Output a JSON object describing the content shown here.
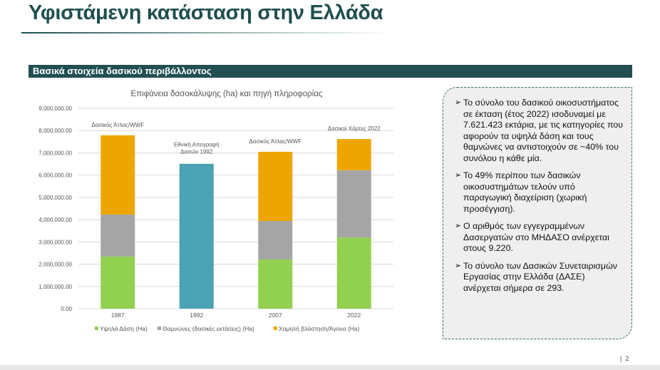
{
  "title": "Υφιστάμενη κατάσταση στην Ελλάδα",
  "section": "Βασικά στοιχεία δασικού περιβάλλοντος",
  "chart_data": {
    "type": "bar",
    "stacked": true,
    "title": "Επιφάνεια δασοκάλυψης (ha) και πηγή πληροφορίας",
    "categories": [
      "1987",
      "1992",
      "2007",
      "2022"
    ],
    "ylim": [
      0,
      9000000
    ],
    "yticks": [
      "0.00",
      "1,000,000.00",
      "2,000,000.00",
      "3,000,000.00",
      "4,000,000.00",
      "5,000,000.00",
      "6,000,000.00",
      "7,000,000.00",
      "8,000,000.00",
      "9,000,000.00"
    ],
    "grid": true,
    "legend_position": "bottom",
    "series": [
      {
        "name": "Υψηλά Δάση (Ha)",
        "color": "#92d050",
        "values": [
          2340000,
          null,
          2210000,
          3200000
        ]
      },
      {
        "name": "Θαμνώνες (δασικές εκτάσεις) (Ha)",
        "color": "#a5a5a5",
        "values": [
          1890000,
          null,
          1730000,
          3020000
        ]
      },
      {
        "name": "Χαμηλή βλάστηση/Άγονα (Ha)",
        "color": "#eda600",
        "values": [
          3560000,
          null,
          3110000,
          1400000
        ]
      },
      {
        "name": "Total 1992",
        "color": "#4ba3b3",
        "values": [
          null,
          6510000,
          null,
          null
        ],
        "hide_legend": true
      }
    ],
    "annotations": [
      {
        "category": "1987",
        "text": "Δασικός Άτλας/WWF"
      },
      {
        "category": "1992",
        "text": "Εθνική Απογραφή Δασών 1992"
      },
      {
        "category": "2007",
        "text": "Δασικός Άτλας/WWF"
      },
      {
        "category": "2022",
        "text": "Δασικοί Χάρτες 2022"
      }
    ]
  },
  "bullets": [
    "Το σύνολο του δασικού οικοσυστήματος σε έκταση (έτος 2022) ισοδυναμεί με 7.621.423 εκτάρια, με τις κατηγορίες που αφορούν τα υψηλά δάση και τους θαμνώνες να αντιστοιχούν σε ~40% του συνόλου η κάθε μία.",
    "Το 49% περίπου των δασικών οικοσυστημάτων τελούν υπό παραγωγική διαχείριση (χωρική προσέγγιση).",
    "Ο αριθμός των εγγεγραμμένων Δασεργατών στο ΜΗΔΑΣΟ ανέρχεται στους 9.220.",
    "Το σύνολο των Δασικών Συνεταιρισμών Εργασίας στην Ελλάδα (ΔΑΣΕ) ανέρχεται σήμερα σε 293."
  ],
  "bullet_icon": "arrow-right-icon",
  "page_number": "2"
}
